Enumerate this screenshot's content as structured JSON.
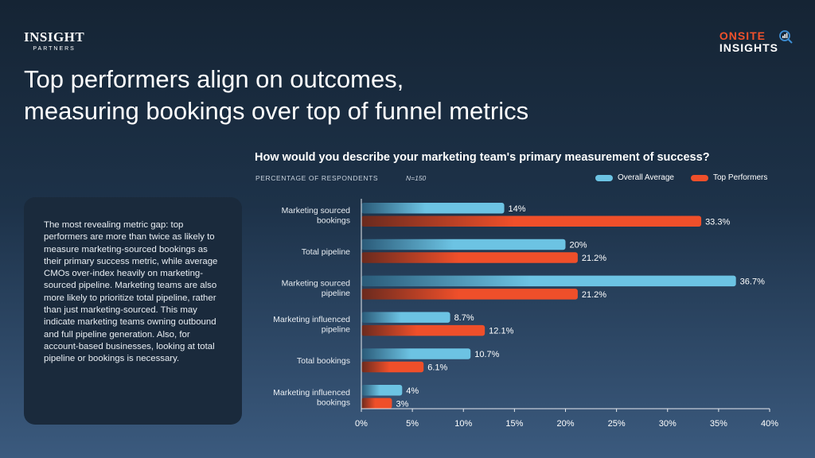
{
  "brand": {
    "left_line1": "INSIGHT",
    "left_line2": "PARTNERS",
    "right_line1": "ONSITE",
    "right_line2": "INSIGHTS",
    "icon": "magnifier-chart-icon"
  },
  "title_lines": [
    "Top performers align on outcomes,",
    "measuring bookings over top of funnel metrics"
  ],
  "card_text": "The most revealing metric gap: top performers are more than twice as likely to measure marketing-sourced bookings as their primary success metric, while average CMOs over-index heavily on marketing-sourced pipeline. Marketing teams are also more likely to prioritize total pipeline, rather than just marketing-sourced. This may indicate marketing teams owning outbound and full pipeline generation. Also, for account-based businesses, looking at total pipeline or bookings is necessary.",
  "chart_subtitle": "PERCENTAGE OF RESPONDENTS",
  "sample_size": "N=150",
  "colors": {
    "overall": "#6cc3e3",
    "top": "#ef4f2a"
  },
  "chart_data": {
    "type": "bar",
    "orientation": "horizontal",
    "title": "How would you describe your marketing team's primary measurement of success?",
    "categories": [
      [
        "Marketing sourced",
        "bookings"
      ],
      [
        "Total pipeline"
      ],
      [
        "Marketing sourced",
        "pipeline"
      ],
      [
        "Marketing influenced",
        "pipeline"
      ],
      [
        "Total bookings"
      ],
      [
        "Marketing influenced",
        "bookings"
      ]
    ],
    "series": [
      {
        "name": "Overall Average",
        "values": [
          14,
          20,
          36.7,
          8.7,
          10.7,
          4
        ],
        "labels": [
          "14%",
          "20%",
          "36.7%",
          "8.7%",
          "10.7%",
          "4%"
        ]
      },
      {
        "name": "Top Performers",
        "values": [
          33.3,
          21.2,
          21.2,
          12.1,
          6.1,
          3
        ],
        "labels": [
          "33.3%",
          "21.2%",
          "21.2%",
          "12.1%",
          "6.1%",
          "3%"
        ]
      }
    ],
    "xlim": [
      0,
      40
    ],
    "xticks": [
      "0%",
      "5%",
      "10%",
      "15%",
      "20%",
      "25%",
      "30%",
      "35%",
      "40%"
    ],
    "legend_position": "top-right",
    "grid": false
  }
}
